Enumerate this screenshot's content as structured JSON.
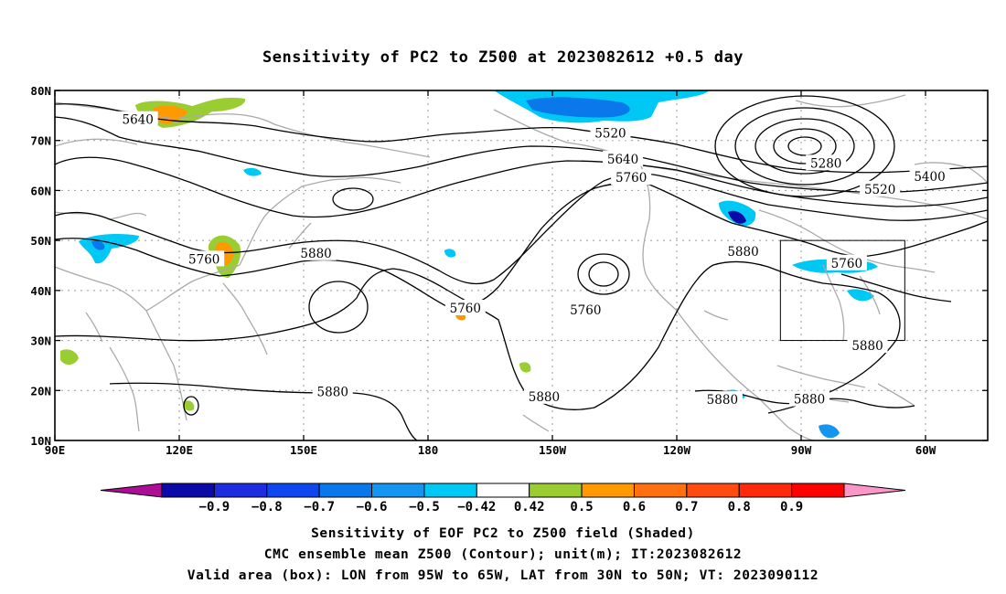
{
  "title": "Sensitivity of PC2 to Z500 at 2023082612 +0.5 day",
  "lat_ticks": [
    "80N",
    "70N",
    "60N",
    "50N",
    "40N",
    "30N",
    "20N",
    "10N"
  ],
  "lon_ticks": [
    "90E",
    "120E",
    "150E",
    "180",
    "150W",
    "120W",
    "90W",
    "60W"
  ],
  "contour_labels": [
    {
      "text": "5640",
      "lon": 110,
      "lat": 74.2
    },
    {
      "text": "5520",
      "lon": -136,
      "lat": 71.5
    },
    {
      "text": "5640",
      "lon": -133,
      "lat": 66.3
    },
    {
      "text": "5760",
      "lon": -131,
      "lat": 62.6
    },
    {
      "text": "5280",
      "lon": -84,
      "lat": 65.5
    },
    {
      "text": "5400",
      "lon": -59,
      "lat": 62.8
    },
    {
      "text": "5520",
      "lon": -71,
      "lat": 60.3
    },
    {
      "text": "5760",
      "lon": 126,
      "lat": 46.3
    },
    {
      "text": "5880",
      "lon": 153,
      "lat": 47.5
    },
    {
      "text": "5760",
      "lon": -171,
      "lat": 36.5
    },
    {
      "text": "5760",
      "lon": -142,
      "lat": 36.1
    },
    {
      "text": "5880",
      "lon": -104,
      "lat": 47.8
    },
    {
      "text": "5760",
      "lon": -79,
      "lat": 45.5
    },
    {
      "text": "5880",
      "lon": -74,
      "lat": 29
    },
    {
      "text": "5880",
      "lon": 157,
      "lat": 19.8
    },
    {
      "text": "5880",
      "lon": -152,
      "lat": 18.8
    },
    {
      "text": "5880",
      "lon": -109,
      "lat": 18.2
    },
    {
      "text": "5880",
      "lon": -88,
      "lat": 18.3
    }
  ],
  "valid_box": {
    "lon_min": -95,
    "lon_max": -65,
    "lat_min": 30,
    "lat_max": 50
  },
  "colorbar": {
    "labels": [
      "-0.9",
      "-0.8",
      "-0.7",
      "-0.6",
      "-0.5",
      "-0.42",
      "0.42",
      "0.5",
      "0.6",
      "0.7",
      "0.8",
      "0.9"
    ],
    "colors": [
      "#ad0e96",
      "#0a0aa6",
      "#1e2ce0",
      "#0f46f0",
      "#0a78ea",
      "#1496f0",
      "#00c8f5",
      "#ffffff",
      "#9acd32",
      "#ff9900",
      "#ff7010",
      "#ff4b10",
      "#ff2a0a",
      "#ff0000",
      "#fa96c8"
    ]
  },
  "caption": [
    "Sensitivity of EOF PC2 to Z500 field (Shaded)",
    "CMC ensemble mean Z500 (Contour); unit(m); IT:2023082612",
    "Valid area (box): LON from 95W to 65W, LAT from 30N to 50N; VT: 2023090112"
  ]
}
